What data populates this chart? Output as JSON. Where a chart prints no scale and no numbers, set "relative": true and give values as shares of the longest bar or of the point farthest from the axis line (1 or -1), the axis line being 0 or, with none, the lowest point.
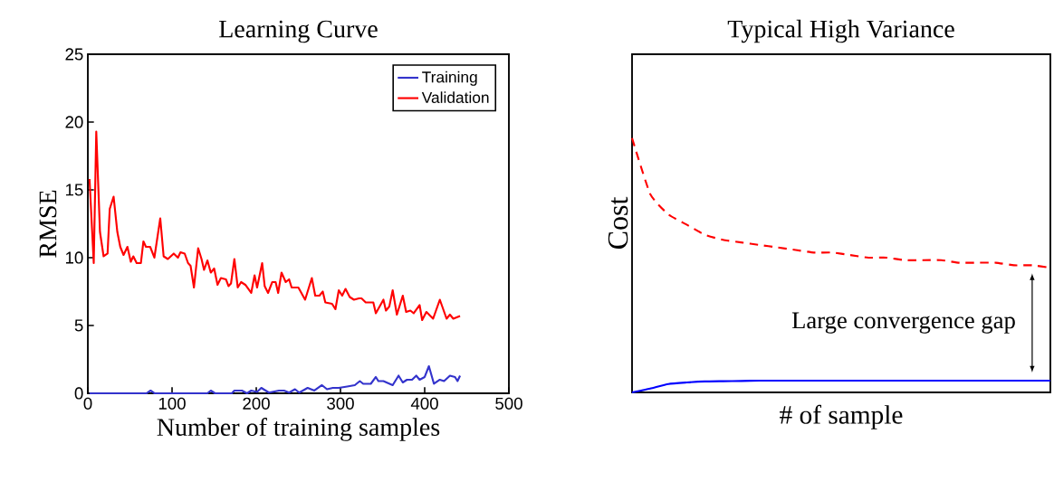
{
  "chart_data": [
    {
      "type": "line",
      "title": "Learning Curve",
      "xlabel": "Number of training samples",
      "ylabel": "RMSE",
      "xlim": [
        0,
        500
      ],
      "ylim": [
        0,
        25
      ],
      "xticks": [
        0,
        100,
        200,
        300,
        400,
        500
      ],
      "yticks": [
        0,
        5,
        10,
        15,
        20,
        25
      ],
      "legend": "top right",
      "series": [
        {
          "name": "Training",
          "color": "#3333cc",
          "x": [
            2,
            70,
            74.5,
            79,
            142,
            146,
            151,
            171,
            174,
            183,
            189,
            194,
            201,
            206,
            215,
            227,
            233,
            239,
            246,
            251,
            261,
            269,
            278,
            284,
            291,
            298,
            308,
            317,
            323,
            327,
            336,
            342,
            345,
            351,
            362,
            369,
            374,
            379,
            385,
            390,
            394,
            400,
            405,
            411,
            418,
            423,
            430,
            436,
            439,
            442
          ],
          "values": [
            0,
            0,
            0.2,
            0,
            0,
            0.2,
            0,
            0,
            0.2,
            0.2,
            0,
            0.2,
            0.1,
            0.4,
            0.05,
            0.2,
            0.2,
            0.05,
            0.3,
            0.05,
            0.4,
            0.2,
            0.6,
            0.3,
            0.4,
            0.4,
            0.5,
            0.6,
            0.9,
            0.7,
            0.7,
            1.2,
            0.9,
            0.9,
            0.6,
            1.3,
            0.8,
            1.0,
            1.0,
            1.3,
            1.0,
            1.2,
            2.0,
            0.7,
            1.0,
            0.9,
            1.3,
            1.2,
            0.9,
            1.3
          ]
        },
        {
          "name": "Validation",
          "color": "#ff0000",
          "x": [
            2,
            7,
            10,
            14.4,
            18.7,
            23.4,
            26,
            30.6,
            35,
            38.5,
            42.4,
            47,
            51,
            54,
            58,
            63,
            66,
            69,
            74,
            79,
            86,
            90,
            95,
            102,
            107,
            110,
            115,
            119,
            122,
            126,
            131,
            135,
            138,
            142,
            146,
            150,
            154,
            158,
            164,
            167,
            170,
            174,
            178,
            182,
            187,
            194,
            198,
            201,
            207,
            210,
            214,
            219,
            223,
            226,
            230,
            235,
            239,
            242,
            250,
            258,
            266,
            270,
            275,
            279,
            282,
            290,
            294,
            298,
            302,
            306,
            311,
            316,
            322,
            325,
            330,
            339,
            342,
            351,
            354,
            358,
            362,
            367,
            374,
            378,
            383,
            387,
            394,
            397,
            402,
            410,
            418,
            426,
            430,
            434,
            442
          ],
          "values": [
            15.8,
            9.6,
            19.3,
            11.9,
            10.1,
            10.3,
            13.6,
            14.5,
            11.9,
            10.8,
            10.2,
            10.8,
            9.7,
            10.1,
            9.6,
            9.6,
            11.2,
            10.8,
            10.8,
            10.0,
            12.9,
            10.1,
            9.9,
            10.3,
            10.0,
            10.4,
            10.3,
            9.6,
            9.4,
            7.8,
            10.7,
            9.9,
            9.1,
            9.8,
            8.9,
            9.2,
            8.0,
            8.5,
            8.4,
            7.9,
            8.1,
            9.9,
            7.8,
            8.2,
            8.0,
            7.4,
            8.7,
            7.8,
            9.6,
            7.9,
            7.4,
            8.2,
            8.2,
            7.4,
            8.9,
            8.2,
            8.4,
            7.8,
            7.8,
            6.9,
            8.5,
            7.2,
            7.2,
            7.5,
            6.7,
            6.6,
            6.2,
            7.6,
            7.2,
            7.7,
            7.1,
            6.9,
            7.0,
            7.0,
            6.7,
            6.7,
            5.9,
            6.9,
            6.1,
            6.4,
            7.6,
            5.8,
            7.2,
            6.0,
            6.1,
            5.9,
            6.5,
            5.4,
            6.0,
            5.5,
            6.9,
            5.5,
            5.8,
            5.5,
            5.7
          ]
        }
      ]
    },
    {
      "type": "line",
      "relative": true,
      "title": "Typical High Variance",
      "xlabel": "# of sample",
      "ylabel": "Cost",
      "annotations": [
        "Large convergence gap"
      ],
      "categories": [
        null,
        null,
        null,
        null,
        null,
        null,
        null,
        null,
        null,
        null,
        null,
        null,
        null,
        null,
        null,
        null,
        null,
        null,
        null,
        null,
        null,
        null,
        null,
        null
      ],
      "series": [
        {
          "color": "#ff0000",
          "line_style": "dashed",
          "values": [
            1,
            0.78,
            0.7,
            0.66,
            0.62,
            0.6,
            0.59,
            0.58,
            0.57,
            0.56,
            0.55,
            0.55,
            0.54,
            0.53,
            0.53,
            0.52,
            0.52,
            0.52,
            0.51,
            0.51,
            0.51,
            0.5,
            0.5,
            0.49
          ]
        },
        {
          "color": "#0000ff",
          "line_style": "solid",
          "values": [
            0,
            0.015,
            0.033,
            0.039,
            0.043,
            0.044,
            0.045,
            0.046,
            0.046,
            0.046,
            0.046,
            0.046,
            0.046,
            0.046,
            0.046,
            0.046,
            0.046,
            0.046,
            0.046,
            0.046,
            0.046,
            0.046,
            0.046,
            0.046
          ]
        }
      ]
    }
  ]
}
